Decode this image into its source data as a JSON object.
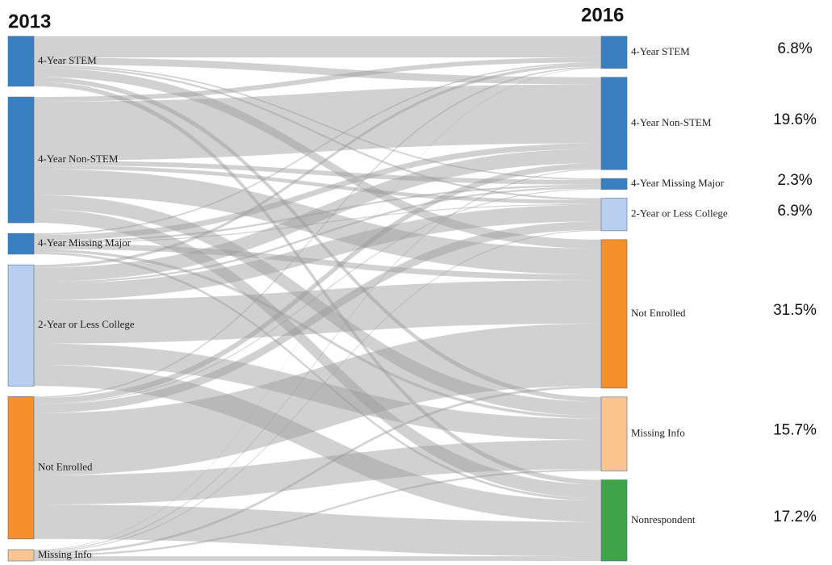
{
  "chart_data": {
    "type": "sankey",
    "left_title": "2013",
    "right_title": "2016",
    "sources": {
      "names": [
        "4-Year STEM",
        "4-Year Non-STEM",
        "4-Year Missing Major",
        "2-Year or Less College",
        "Not Enrolled",
        "Missing Info"
      ],
      "values": [
        10.6,
        26.7,
        4.4,
        25.7,
        30.2,
        2.4
      ],
      "colors": [
        "#3a7fc0",
        "#3a7fc0",
        "#3a7fc0",
        "#b8cfef",
        "#f78f2a",
        "#fcc590"
      ]
    },
    "targets": {
      "names": [
        "4-Year STEM",
        "4-Year Non-STEM",
        "4-Year Missing Major",
        "2-Year or Less College",
        "Not Enrolled",
        "Missing Info",
        "Nonrespondent"
      ],
      "values": [
        6.8,
        19.6,
        2.3,
        6.9,
        31.5,
        15.7,
        17.2
      ],
      "value_labels": [
        "6.8%",
        "19.6%",
        "2.3%",
        "6.9%",
        "31.5%",
        "15.7%",
        "17.2%"
      ],
      "colors": [
        "#3a7fc0",
        "#3a7fc0",
        "#3a7fc0",
        "#b8cfef",
        "#f78f2a",
        "#fcc590",
        "#3fa447"
      ]
    },
    "link_color": "#9a9a9a",
    "links": [
      {
        "source": "4-Year STEM",
        "target": "4-Year STEM",
        "value": 4.5
      },
      {
        "source": "4-Year STEM",
        "target": "4-Year Non-STEM",
        "value": 1.5
      },
      {
        "source": "4-Year STEM",
        "target": "4-Year Missing Major",
        "value": 0.3
      },
      {
        "source": "4-Year STEM",
        "target": "2-Year or Less College",
        "value": 0.4
      },
      {
        "source": "4-Year STEM",
        "target": "Not Enrolled",
        "value": 1.9
      },
      {
        "source": "4-Year STEM",
        "target": "Missing Info",
        "value": 1.0
      },
      {
        "source": "4-Year STEM",
        "target": "Nonrespondent",
        "value": 1.0
      },
      {
        "source": "4-Year Non-STEM",
        "target": "4-Year STEM",
        "value": 1.0
      },
      {
        "source": "4-Year Non-STEM",
        "target": "4-Year Non-STEM",
        "value": 12.5
      },
      {
        "source": "4-Year Non-STEM",
        "target": "4-Year Missing Major",
        "value": 1.0
      },
      {
        "source": "4-Year Non-STEM",
        "target": "2-Year or Less College",
        "value": 0.8
      },
      {
        "source": "4-Year Non-STEM",
        "target": "Not Enrolled",
        "value": 5.5
      },
      {
        "source": "4-Year Non-STEM",
        "target": "Missing Info",
        "value": 3.0
      },
      {
        "source": "4-Year Non-STEM",
        "target": "Nonrespondent",
        "value": 2.9
      },
      {
        "source": "4-Year Missing Major",
        "target": "4-Year STEM",
        "value": 0.3
      },
      {
        "source": "4-Year Missing Major",
        "target": "4-Year Non-STEM",
        "value": 1.2
      },
      {
        "source": "4-Year Missing Major",
        "target": "4-Year Missing Major",
        "value": 0.4
      },
      {
        "source": "4-Year Missing Major",
        "target": "2-Year or Less College",
        "value": 0.2
      },
      {
        "source": "4-Year Missing Major",
        "target": "Not Enrolled",
        "value": 1.2
      },
      {
        "source": "4-Year Missing Major",
        "target": "Missing Info",
        "value": 0.6
      },
      {
        "source": "4-Year Missing Major",
        "target": "Nonrespondent",
        "value": 0.5
      },
      {
        "source": "2-Year or Less College",
        "target": "4-Year STEM",
        "value": 0.6
      },
      {
        "source": "2-Year or Less College",
        "target": "4-Year Non-STEM",
        "value": 3.0
      },
      {
        "source": "2-Year or Less College",
        "target": "4-Year Missing Major",
        "value": 0.4
      },
      {
        "source": "2-Year or Less College",
        "target": "2-Year or Less College",
        "value": 3.5
      },
      {
        "source": "2-Year or Less College",
        "target": "Not Enrolled",
        "value": 9.2
      },
      {
        "source": "2-Year or Less College",
        "target": "Missing Info",
        "value": 4.5
      },
      {
        "source": "2-Year or Less College",
        "target": "Nonrespondent",
        "value": 4.5
      },
      {
        "source": "Not Enrolled",
        "target": "4-Year STEM",
        "value": 0.3
      },
      {
        "source": "Not Enrolled",
        "target": "4-Year Non-STEM",
        "value": 1.2
      },
      {
        "source": "Not Enrolled",
        "target": "4-Year Missing Major",
        "value": 0.2
      },
      {
        "source": "Not Enrolled",
        "target": "2-Year or Less College",
        "value": 1.8
      },
      {
        "source": "Not Enrolled",
        "target": "Not Enrolled",
        "value": 13.2
      },
      {
        "source": "Not Enrolled",
        "target": "Missing Info",
        "value": 6.2
      },
      {
        "source": "Not Enrolled",
        "target": "Nonrespondent",
        "value": 7.3
      },
      {
        "source": "Missing Info",
        "target": "4-Year STEM",
        "value": 0.1
      },
      {
        "source": "Missing Info",
        "target": "4-Year Non-STEM",
        "value": 0.2
      },
      {
        "source": "Missing Info",
        "target": "2-Year or Less College",
        "value": 0.2
      },
      {
        "source": "Missing Info",
        "target": "Not Enrolled",
        "value": 0.5
      },
      {
        "source": "Missing Info",
        "target": "Missing Info",
        "value": 0.4
      },
      {
        "source": "Missing Info",
        "target": "Nonrespondent",
        "value": 1.0
      }
    ]
  }
}
